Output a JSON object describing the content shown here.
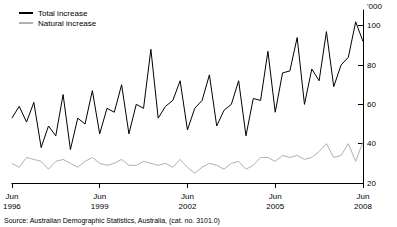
{
  "chart_data": {
    "type": "line",
    "y_label": "'000",
    "source": "Source: Australian Demographic Statistics, Australia, (cat. no. 3101.0)",
    "categories": [
      "Jun\n1996",
      null,
      null,
      null,
      null,
      null,
      null,
      null,
      null,
      null,
      null,
      null,
      "Jun\n1999",
      null,
      null,
      null,
      null,
      null,
      null,
      null,
      null,
      null,
      null,
      null,
      "Jun\n2002",
      null,
      null,
      null,
      null,
      null,
      null,
      null,
      null,
      null,
      null,
      null,
      "Jun\n2005",
      null,
      null,
      null,
      null,
      null,
      null,
      null,
      null,
      null,
      null,
      null,
      "Jun\n2008"
    ],
    "series": [
      {
        "name": "Total increase",
        "color": "#000000",
        "values": [
          53,
          59,
          51,
          61,
          38,
          49,
          44,
          65,
          37,
          53,
          50,
          67,
          45,
          58,
          56,
          70,
          45,
          60,
          58,
          88,
          53,
          59,
          62,
          72,
          47,
          58,
          62,
          75,
          49,
          57,
          60,
          72,
          44,
          63,
          62,
          87,
          56,
          76,
          77,
          94,
          60,
          78,
          72,
          97,
          69,
          80,
          84,
          102,
          92
        ]
      },
      {
        "name": "Natural increase",
        "color": "#b0b0b0",
        "values": [
          30,
          28,
          33,
          32,
          31,
          27,
          31,
          32,
          30,
          28,
          31,
          33,
          30,
          29,
          30,
          32,
          29,
          29,
          31,
          30,
          29,
          30,
          28,
          32,
          28,
          25,
          28,
          30,
          29,
          27,
          30,
          31,
          27,
          29,
          33,
          33,
          31,
          34,
          33,
          34,
          32,
          33,
          36,
          40,
          33,
          34,
          40,
          31,
          41
        ]
      }
    ],
    "ylim": [
      20,
      108
    ],
    "yticks": [
      20,
      40,
      60,
      80,
      100
    ],
    "grid": false,
    "legend": "top-left"
  }
}
